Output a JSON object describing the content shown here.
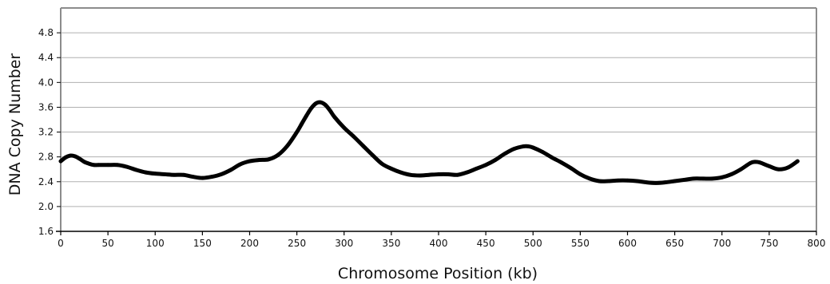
{
  "chart_data": {
    "type": "line",
    "xlabel": "Chromosome Position (kb)",
    "ylabel": "DNA Copy Number",
    "xlim": [
      0,
      800
    ],
    "ylim": [
      1.6,
      5.2
    ],
    "x_ticks": [
      0,
      50,
      100,
      150,
      200,
      250,
      300,
      350,
      400,
      450,
      500,
      550,
      600,
      650,
      700,
      750,
      800
    ],
    "y_ticks": [
      1.6,
      2.0,
      2.4,
      2.8,
      3.2,
      3.6,
      4.0,
      4.4,
      4.8
    ],
    "grid": "horizontal",
    "legend": "none",
    "line_color": "#000000",
    "frame_color": "#8c8c8c",
    "grid_color": "#b0b0b0",
    "series": [
      {
        "x": [
          0,
          5,
          10,
          15,
          20,
          25,
          30,
          35,
          40,
          50,
          60,
          70,
          80,
          90,
          100,
          110,
          120,
          130,
          140,
          150,
          160,
          170,
          180,
          190,
          200,
          210,
          220,
          230,
          240,
          250,
          255,
          260,
          265,
          270,
          275,
          280,
          285,
          290,
          300,
          310,
          320,
          330,
          340,
          350,
          360,
          370,
          380,
          390,
          400,
          410,
          420,
          430,
          440,
          450,
          460,
          470,
          480,
          490,
          495,
          500,
          510,
          520,
          530,
          540,
          550,
          560,
          570,
          580,
          590,
          600,
          610,
          620,
          630,
          640,
          650,
          660,
          670,
          680,
          690,
          700,
          710,
          720,
          730,
          735,
          740,
          750,
          760,
          770,
          780
        ],
        "y": [
          2.73,
          2.79,
          2.82,
          2.81,
          2.77,
          2.72,
          2.69,
          2.67,
          2.67,
          2.67,
          2.67,
          2.64,
          2.59,
          2.55,
          2.53,
          2.52,
          2.51,
          2.51,
          2.48,
          2.46,
          2.48,
          2.52,
          2.59,
          2.68,
          2.73,
          2.75,
          2.76,
          2.83,
          2.98,
          3.2,
          3.33,
          3.46,
          3.58,
          3.66,
          3.68,
          3.64,
          3.55,
          3.44,
          3.27,
          3.13,
          2.98,
          2.83,
          2.69,
          2.61,
          2.55,
          2.51,
          2.5,
          2.51,
          2.52,
          2.52,
          2.51,
          2.55,
          2.61,
          2.67,
          2.75,
          2.85,
          2.93,
          2.97,
          2.97,
          2.95,
          2.88,
          2.79,
          2.71,
          2.62,
          2.52,
          2.45,
          2.41,
          2.41,
          2.42,
          2.42,
          2.41,
          2.39,
          2.38,
          2.39,
          2.41,
          2.43,
          2.45,
          2.45,
          2.45,
          2.47,
          2.52,
          2.6,
          2.7,
          2.72,
          2.71,
          2.65,
          2.6,
          2.63,
          2.73
        ]
      }
    ]
  }
}
